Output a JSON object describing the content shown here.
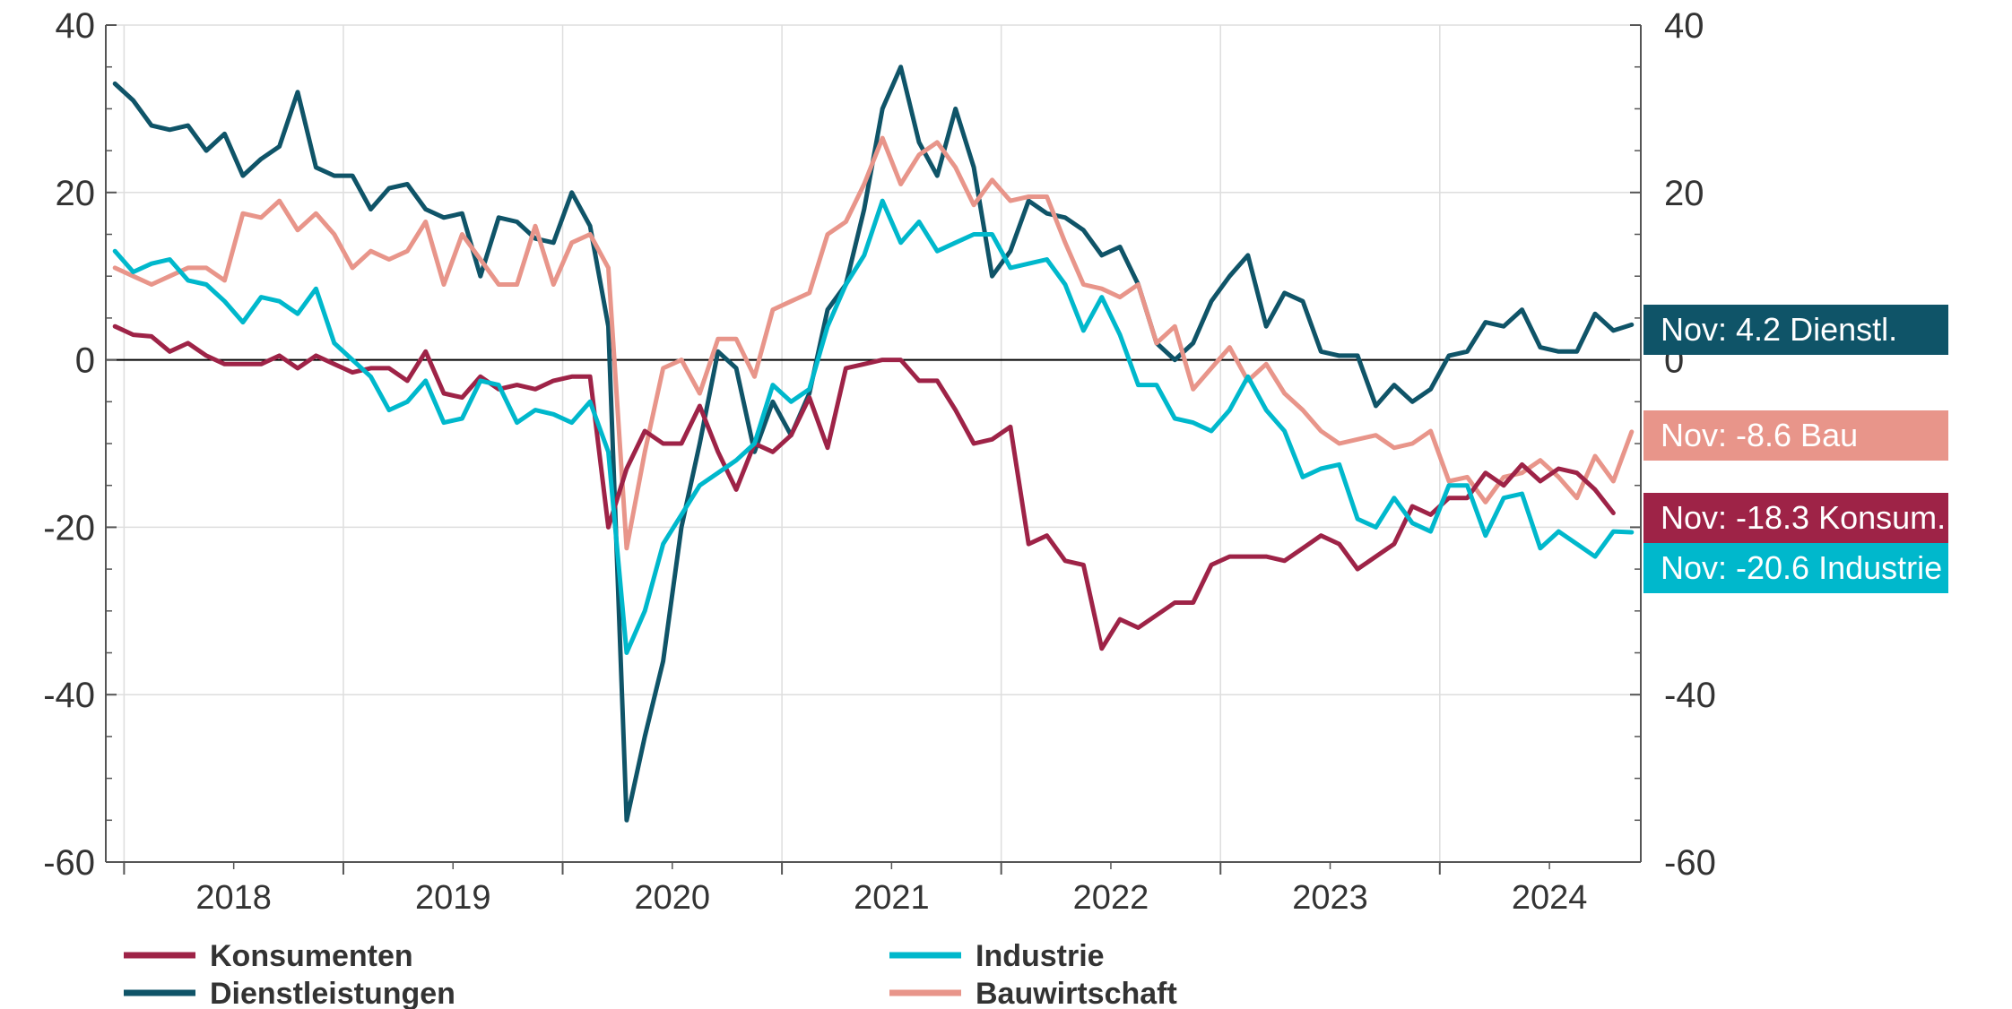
{
  "chart_data": {
    "type": "line",
    "title": "",
    "xlabel": "",
    "ylabel": "",
    "ylim": [
      -60,
      40
    ],
    "yticks": [
      40,
      20,
      0,
      -20,
      -40,
      -60
    ],
    "x_start": "2017-12",
    "x_end": "2024-12",
    "year_labels": [
      "2018",
      "2019",
      "2020",
      "2021",
      "2022",
      "2023",
      "2024"
    ],
    "grid": true,
    "legend": "bottom",
    "series": [
      {
        "name": "Dienstleistungen",
        "color": "#0f5468",
        "end_label": "Nov: 4.2 Dienstl.",
        "values": [
          33,
          31,
          28,
          27.5,
          28,
          25,
          27,
          22,
          24,
          25.5,
          32,
          23,
          22,
          22,
          18,
          20.5,
          21,
          18,
          17,
          17.5,
          10,
          17,
          16.5,
          14.5,
          14,
          20,
          16,
          4,
          -55,
          -45,
          -36,
          -20,
          -10,
          1,
          -1,
          -11,
          -5,
          -9,
          -4,
          6,
          9,
          18,
          30,
          35,
          26,
          22,
          30,
          23,
          10,
          13,
          19,
          17.5,
          17,
          15.5,
          12.5,
          13.5,
          9,
          2,
          0,
          2,
          7,
          10,
          12.5,
          4,
          8,
          7,
          1,
          0.5,
          0.5,
          -5.5,
          -3,
          -5,
          -3.5,
          0.5,
          1,
          4.5,
          4,
          6,
          1.5,
          1,
          1,
          5.5,
          3.5,
          4.2
        ]
      },
      {
        "name": "Bauwirtschaft",
        "color": "#e8958a",
        "end_label": "Nov: -8.6 Bau",
        "values": [
          11,
          10,
          9,
          10,
          11,
          11,
          9.5,
          17.5,
          17,
          19,
          15.5,
          17.5,
          15,
          11,
          13,
          12,
          13,
          16.5,
          9,
          15,
          12,
          9,
          9,
          16,
          9,
          14,
          15,
          11,
          -22.5,
          -11,
          -1,
          0,
          -4,
          2.5,
          2.5,
          -2,
          6,
          7,
          8,
          15,
          16.5,
          21,
          26.5,
          21,
          24.5,
          26,
          23,
          18.5,
          21.5,
          19,
          19.5,
          19.5,
          14,
          9,
          8.5,
          7.5,
          9,
          2,
          4,
          -3.5,
          -1,
          1.5,
          -2.5,
          -0.5,
          -4,
          -6,
          -8.5,
          -10,
          -9.5,
          -9,
          -10.5,
          -10,
          -8.5,
          -14.5,
          -14,
          -17,
          -14,
          -13.5,
          -12,
          -14,
          -16.5,
          -11.5,
          -14.5,
          -8.6
        ]
      },
      {
        "name": "Konsumenten",
        "color": "#9e2347",
        "end_label": "Nov: -18.3 Konsum.",
        "values": [
          4,
          3,
          2.8,
          1,
          2,
          0.5,
          -0.5,
          -0.5,
          -0.5,
          0.5,
          -1,
          0.5,
          -0.5,
          -1.5,
          -1,
          -1,
          -2.5,
          1,
          -4,
          -4.5,
          -2,
          -3.5,
          -3,
          -3.5,
          -2.5,
          -2,
          -2,
          -20,
          -13,
          -8.5,
          -10,
          -10,
          -5.5,
          -11,
          -15.5,
          -10,
          -11,
          -9,
          -4.5,
          -10.5,
          -1,
          -0.5,
          0,
          0,
          -2.5,
          -2.5,
          -6,
          -10,
          -9.5,
          -8,
          -22,
          -21,
          -24,
          -24.5,
          -34.5,
          -31,
          -32,
          -30.5,
          -29,
          -29,
          -24.5,
          -23.5,
          -23.5,
          -23.5,
          -24,
          -22.5,
          -21,
          -22,
          -25,
          -23.5,
          -22,
          -17.5,
          -18.5,
          -16.5,
          -16.5,
          -13.5,
          -15,
          -12.5,
          -14.5,
          -13,
          -13.5,
          -15.5,
          -18.3
        ]
      },
      {
        "name": "Industrie",
        "color": "#00b8cc",
        "end_label": "Nov: -20.6 Industrie",
        "values": [
          13,
          10.5,
          11.5,
          12,
          9.5,
          9,
          7,
          4.5,
          7.5,
          7,
          5.5,
          8.5,
          2,
          0,
          -2,
          -6,
          -5,
          -2.5,
          -7.5,
          -7,
          -2.5,
          -3,
          -7.5,
          -6,
          -6.5,
          -7.5,
          -5,
          -11,
          -35,
          -30,
          -22,
          -18.5,
          -15,
          -13.5,
          -12,
          -10,
          -3,
          -5,
          -3.5,
          4,
          9,
          12.5,
          19,
          14,
          16.5,
          13,
          14,
          15,
          15,
          11,
          11.5,
          12,
          9,
          3.5,
          7.5,
          3,
          -3,
          -3,
          -7,
          -7.5,
          -8.5,
          -6,
          -2,
          -6,
          -8.5,
          -14,
          -13,
          -12.5,
          -19,
          -20,
          -16.5,
          -19.5,
          -20.5,
          -15,
          -15,
          -21,
          -16.5,
          -16,
          -22.5,
          -20.5,
          -22,
          -23.5,
          -20.5,
          -20.6
        ]
      }
    ]
  }
}
